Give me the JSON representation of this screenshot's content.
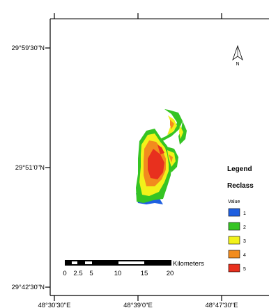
{
  "latitude_labels": [
    "29°59'30\"N",
    "29°51'0\"N",
    "29°42'30\"N"
  ],
  "longitude_labels": [
    "48°30'30\"E",
    "48°39'0\"E",
    "48°47'30\"E"
  ],
  "north_label": "N",
  "legend": {
    "title": "Legend",
    "layer": "Reclass",
    "field": "Value",
    "classes": [
      {
        "label": "1",
        "color": "#1f5fe0"
      },
      {
        "label": "2",
        "color": "#35c423"
      },
      {
        "label": "3",
        "color": "#f2f21a"
      },
      {
        "label": "4",
        "color": "#f28c1e"
      },
      {
        "label": "5",
        "color": "#e8301e"
      }
    ]
  },
  "scale_bar": {
    "unit": "Kilometers",
    "ticks": [
      "0",
      "2.5",
      "5",
      "10",
      "15",
      "20"
    ]
  }
}
